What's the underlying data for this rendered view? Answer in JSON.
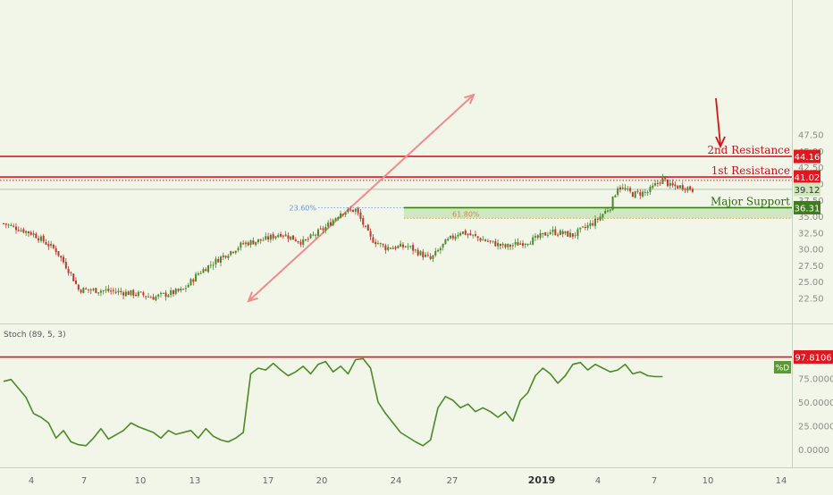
{
  "chart_data": [
    {
      "type": "candlestick",
      "x_tick_labels": [
        "4",
        "7",
        "10",
        "13",
        "17",
        "20",
        "24",
        "27",
        "2019",
        "4",
        "7",
        "10",
        "14"
      ],
      "y_tick_labels": [
        "22.50",
        "25.00",
        "27.50",
        "30.00",
        "32.50",
        "35.00",
        "37.50",
        "40.00",
        "42.50",
        "45.00",
        "47.50"
      ],
      "ylim": [
        20.5,
        50.0
      ],
      "grid": false,
      "colors": {
        "up": "#4a8a2a",
        "down": "#c0392b",
        "resistance": "#e3161d",
        "support": "#3d7d1c",
        "fib_arrow": "#f28b8b",
        "background": "#f1f6e9"
      },
      "close_path": [
        [
          0,
          33.9
        ],
        [
          4,
          32.3
        ],
        [
          7,
          29.8
        ],
        [
          9,
          26.2
        ],
        [
          10,
          23.8
        ],
        [
          14,
          23.6
        ],
        [
          18,
          23.1
        ],
        [
          20,
          22.6
        ],
        [
          24,
          23.7
        ],
        [
          26,
          26.3
        ],
        [
          29,
          28.7
        ],
        [
          32,
          30.8
        ],
        [
          35,
          31.5
        ],
        [
          37,
          32.4
        ],
        [
          40,
          31.0
        ],
        [
          43,
          33.3
        ],
        [
          45,
          35.6
        ],
        [
          47,
          36.0
        ],
        [
          49,
          31.6
        ],
        [
          51,
          30.2
        ],
        [
          54,
          30.4
        ],
        [
          57,
          28.4
        ],
        [
          59,
          31.0
        ],
        [
          61,
          32.7
        ],
        [
          64,
          31.4
        ],
        [
          67,
          30.3
        ],
        [
          71,
          31.5
        ],
        [
          73,
          32.7
        ],
        [
          76,
          32.1
        ],
        [
          79,
          34.2
        ],
        [
          81,
          36.5
        ],
        [
          82,
          39.6
        ],
        [
          84,
          38.4
        ],
        [
          86,
          38.7
        ],
        [
          88,
          40.8
        ],
        [
          89,
          39.6
        ],
        [
          91,
          39.5
        ],
        [
          92,
          39.1
        ]
      ],
      "levels": [
        {
          "label": "2nd Resistance",
          "value": 44.16,
          "value_label": "44.16"
        },
        {
          "label": "1st Resistance",
          "value": 41.02,
          "value_label": "41.02"
        },
        {
          "label": "Major Support",
          "value": 36.31,
          "value_label": "36.31"
        }
      ],
      "dotted_levels": [
        40.5,
        34.7
      ],
      "last_price": {
        "value": 39.12,
        "value_label": "39.12"
      },
      "fibonacci": [
        {
          "label": "23.60%",
          "value": 36.31
        },
        {
          "label": "61.80%",
          "value": 34.7
        }
      ]
    },
    {
      "type": "line",
      "title": "Stoch (89, 5, 3)",
      "y_tick_labels": [
        "0.0000",
        "25.0000",
        "50.0000",
        "75.0000"
      ],
      "ylim": [
        -12,
        105
      ],
      "series": [
        {
          "name": "%D",
          "color": "#4b8a26",
          "values": [
            [
              0,
              72
            ],
            [
              1,
              74
            ],
            [
              3,
              55
            ],
            [
              4,
              38
            ],
            [
              5,
              34
            ],
            [
              6,
              28
            ],
            [
              7,
              12
            ],
            [
              8,
              20
            ],
            [
              9,
              8
            ],
            [
              10,
              5
            ],
            [
              11,
              4
            ],
            [
              12,
              12
            ],
            [
              13,
              22
            ],
            [
              14,
              11
            ],
            [
              16,
              20
            ],
            [
              17,
              28
            ],
            [
              18,
              24
            ],
            [
              20,
              18
            ],
            [
              21,
              12
            ],
            [
              22,
              20
            ],
            [
              23,
              16
            ],
            [
              25,
              20
            ],
            [
              26,
              12
            ],
            [
              27,
              22
            ],
            [
              28,
              14
            ],
            [
              29,
              10
            ],
            [
              30,
              8
            ],
            [
              31,
              12
            ],
            [
              32,
              18
            ],
            [
              33,
              80
            ],
            [
              34,
              86
            ],
            [
              35,
              84
            ],
            [
              36,
              91
            ],
            [
              37,
              84
            ],
            [
              38,
              78
            ],
            [
              39,
              82
            ],
            [
              40,
              88
            ],
            [
              41,
              80
            ],
            [
              42,
              90
            ],
            [
              43,
              93
            ],
            [
              44,
              82
            ],
            [
              45,
              88
            ],
            [
              46,
              80
            ],
            [
              47,
              95
            ],
            [
              48,
              96
            ],
            [
              49,
              86
            ],
            [
              50,
              50
            ],
            [
              51,
              38
            ],
            [
              52,
              28
            ],
            [
              53,
              18
            ],
            [
              55,
              8
            ],
            [
              56,
              4
            ],
            [
              57,
              10
            ],
            [
              58,
              44
            ],
            [
              59,
              56
            ],
            [
              60,
              52
            ],
            [
              61,
              44
            ],
            [
              62,
              48
            ],
            [
              63,
              40
            ],
            [
              64,
              44
            ],
            [
              65,
              40
            ],
            [
              66,
              34
            ],
            [
              67,
              40
            ],
            [
              68,
              30
            ],
            [
              69,
              52
            ],
            [
              70,
              60
            ],
            [
              71,
              78
            ],
            [
              72,
              86
            ],
            [
              73,
              80
            ],
            [
              74,
              70
            ],
            [
              75,
              78
            ],
            [
              76,
              90
            ],
            [
              77,
              92
            ],
            [
              78,
              84
            ],
            [
              79,
              90
            ],
            [
              80,
              86
            ],
            [
              81,
              82
            ],
            [
              82,
              84
            ],
            [
              83,
              90
            ],
            [
              84,
              80
            ],
            [
              85,
              82
            ],
            [
              86,
              78
            ],
            [
              87,
              77
            ],
            [
              88,
              77
            ]
          ]
        }
      ],
      "levels": [
        {
          "value": 97.8106,
          "value_label": "97.8106"
        }
      ],
      "last_value_label": "%D"
    }
  ]
}
